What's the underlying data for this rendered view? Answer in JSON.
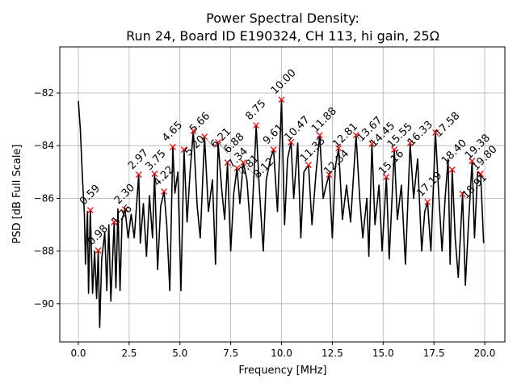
{
  "chart_data": {
    "type": "line",
    "title": "Power Spectral Density:",
    "subtitle": "Run 24, Board ID E190324, CH 113, hi gain, 25Ω",
    "xlabel": "Frequency [MHz]",
    "ylabel": "PSD [dB Full Scale]",
    "xlim": [
      -0.9,
      21.0
    ],
    "ylim": [
      -91.5,
      -80.2
    ],
    "xticks": [
      0.0,
      2.5,
      5.0,
      7.5,
      10.0,
      12.5,
      15.0,
      17.5,
      20.0
    ],
    "xtick_labels": [
      "0.0",
      "2.5",
      "5.0",
      "7.5",
      "10.0",
      "12.5",
      "15.0",
      "17.5",
      "20.0"
    ],
    "yticks": [
      -90,
      -88,
      -86,
      -84,
      -82
    ],
    "ytick_labels": [
      "−90",
      "−88",
      "−86",
      "−84",
      "−82"
    ],
    "grid": true,
    "line_color": "#000000",
    "marker_color": "#ff0000",
    "trace": [
      [
        0,
        -82.3
      ],
      [
        0.1,
        -83.4
      ],
      [
        0.2,
        -85.2
      ],
      [
        0.3,
        -86.6
      ],
      [
        0.35,
        -88.5
      ],
      [
        0.45,
        -86.5
      ],
      [
        0.5,
        -89.6
      ],
      [
        0.59,
        -86.45
      ],
      [
        0.7,
        -89.6
      ],
      [
        0.8,
        -88
      ],
      [
        0.9,
        -89.8
      ],
      [
        0.98,
        -88
      ],
      [
        1.05,
        -90.9
      ],
      [
        1.15,
        -88.3
      ],
      [
        1.3,
        -87.3
      ],
      [
        1.4,
        -89.5
      ],
      [
        1.5,
        -87
      ],
      [
        1.6,
        -89.9
      ],
      [
        1.76,
        -86.9
      ],
      [
        1.85,
        -89.4
      ],
      [
        1.95,
        -86.4
      ],
      [
        2.05,
        -89.5
      ],
      [
        2.15,
        -86.8
      ],
      [
        2.3,
        -86.42
      ],
      [
        2.45,
        -87.5
      ],
      [
        2.6,
        -86.6
      ],
      [
        2.75,
        -87.5
      ],
      [
        2.97,
        -85.1
      ],
      [
        3.05,
        -87.7
      ],
      [
        3.2,
        -86.2
      ],
      [
        3.35,
        -88.2
      ],
      [
        3.5,
        -85.9
      ],
      [
        3.65,
        -87.5
      ],
      [
        3.75,
        -85.07
      ],
      [
        3.9,
        -88.7
      ],
      [
        4.05,
        -86.3
      ],
      [
        4.22,
        -85.74
      ],
      [
        4.35,
        -87
      ],
      [
        4.5,
        -89.5
      ],
      [
        4.65,
        -84.05
      ],
      [
        4.75,
        -85.8
      ],
      [
        4.9,
        -85
      ],
      [
        5.05,
        -89.5
      ],
      [
        5.2,
        -84.15
      ],
      [
        5.35,
        -86.9
      ],
      [
        5.5,
        -85
      ],
      [
        5.66,
        -83.44
      ],
      [
        5.85,
        -86.3
      ],
      [
        6.0,
        -87.5
      ],
      [
        6.21,
        -83.66
      ],
      [
        6.4,
        -86.5
      ],
      [
        6.6,
        -85.3
      ],
      [
        6.75,
        -88.5
      ],
      [
        6.88,
        -83.87
      ],
      [
        7.05,
        -85.6
      ],
      [
        7.2,
        -86.8
      ],
      [
        7.34,
        -84.64
      ],
      [
        7.5,
        -88
      ],
      [
        7.65,
        -85.8
      ],
      [
        7.81,
        -84.85
      ],
      [
        7.95,
        -86.2
      ],
      [
        8.12,
        -84.64
      ],
      [
        8.3,
        -85.3
      ],
      [
        8.5,
        -87.5
      ],
      [
        8.75,
        -83.23
      ],
      [
        8.9,
        -85.5
      ],
      [
        9.1,
        -88
      ],
      [
        9.25,
        -85.3
      ],
      [
        9.45,
        -84.5
      ],
      [
        9.61,
        -84.15
      ],
      [
        9.8,
        -86.5
      ],
      [
        10.0,
        -82.25
      ],
      [
        10.15,
        -87
      ],
      [
        10.3,
        -84.5
      ],
      [
        10.47,
        -83.87
      ],
      [
        10.6,
        -86
      ],
      [
        10.8,
        -83.9
      ],
      [
        10.95,
        -87.5
      ],
      [
        11.1,
        -85
      ],
      [
        11.33,
        -84.73
      ],
      [
        11.5,
        -87
      ],
      [
        11.7,
        -85
      ],
      [
        11.88,
        -83.6
      ],
      [
        12.05,
        -86
      ],
      [
        12.2,
        -85.5
      ],
      [
        12.34,
        -85.1
      ],
      [
        12.5,
        -87.5
      ],
      [
        12.65,
        -84.8
      ],
      [
        12.81,
        -84.1
      ],
      [
        13.0,
        -86.8
      ],
      [
        13.2,
        -85.5
      ],
      [
        13.4,
        -86.9
      ],
      [
        13.67,
        -83.6
      ],
      [
        13.85,
        -86
      ],
      [
        14.0,
        -87.5
      ],
      [
        14.2,
        -86
      ],
      [
        14.3,
        -88.2
      ],
      [
        14.45,
        -83.93
      ],
      [
        14.6,
        -87
      ],
      [
        14.8,
        -85.5
      ],
      [
        14.95,
        -88
      ],
      [
        15.16,
        -85.19
      ],
      [
        15.3,
        -88.3
      ],
      [
        15.55,
        -84.15
      ],
      [
        15.7,
        -86.8
      ],
      [
        15.9,
        -85.5
      ],
      [
        16.1,
        -88.5
      ],
      [
        16.33,
        -83.9
      ],
      [
        16.5,
        -86
      ],
      [
        16.7,
        -84.5
      ],
      [
        16.9,
        -88
      ],
      [
        17.05,
        -86.5
      ],
      [
        17.19,
        -86.14
      ],
      [
        17.35,
        -88
      ],
      [
        17.58,
        -83.5
      ],
      [
        17.75,
        -86
      ],
      [
        17.9,
        -88
      ],
      [
        18.05,
        -86
      ],
      [
        18.2,
        -84.5
      ],
      [
        18.3,
        -88.5
      ],
      [
        18.4,
        -84.91
      ],
      [
        18.55,
        -87.5
      ],
      [
        18.7,
        -89
      ],
      [
        18.91,
        -85.83
      ],
      [
        19.05,
        -89.3
      ],
      [
        19.2,
        -87
      ],
      [
        19.38,
        -84.58
      ],
      [
        19.5,
        -87.5
      ],
      [
        19.65,
        -85
      ],
      [
        19.8,
        -85.07
      ],
      [
        19.95,
        -87.7
      ]
    ],
    "peaks": [
      {
        "x": 0.59,
        "y": -86.45,
        "label": "0.59"
      },
      {
        "x": 0.98,
        "y": -87.98,
        "label": "0.98"
      },
      {
        "x": 1.76,
        "y": -86.9,
        "label": "1.76"
      },
      {
        "x": 2.3,
        "y": -86.42,
        "label": "2.30"
      },
      {
        "x": 2.97,
        "y": -85.1,
        "label": "2.97"
      },
      {
        "x": 3.75,
        "y": -85.07,
        "label": "3.75"
      },
      {
        "x": 4.22,
        "y": -85.74,
        "label": "4.22"
      },
      {
        "x": 4.65,
        "y": -84.05,
        "label": "4.65"
      },
      {
        "x": 5.2,
        "y": -84.15,
        "label": "5.20"
      },
      {
        "x": 5.66,
        "y": -83.44,
        "label": "5.66"
      },
      {
        "x": 6.21,
        "y": -83.66,
        "label": "6.21"
      },
      {
        "x": 6.88,
        "y": -83.87,
        "label": "6.88"
      },
      {
        "x": 7.34,
        "y": -84.64,
        "label": "7.34"
      },
      {
        "x": 7.81,
        "y": -84.85,
        "label": "7.81"
      },
      {
        "x": 8.12,
        "y": -84.64,
        "label": "8.12"
      },
      {
        "x": 8.75,
        "y": -83.23,
        "label": "8.75"
      },
      {
        "x": 9.61,
        "y": -84.15,
        "label": "9.61"
      },
      {
        "x": 10.0,
        "y": -82.25,
        "label": "10.00"
      },
      {
        "x": 10.47,
        "y": -83.87,
        "label": "10.47"
      },
      {
        "x": 11.33,
        "y": -84.73,
        "label": "11.33"
      },
      {
        "x": 11.88,
        "y": -83.6,
        "label": "11.88"
      },
      {
        "x": 12.34,
        "y": -85.1,
        "label": "12.34"
      },
      {
        "x": 12.81,
        "y": -84.1,
        "label": "12.81"
      },
      {
        "x": 13.67,
        "y": -83.6,
        "label": "13.67"
      },
      {
        "x": 14.45,
        "y": -83.93,
        "label": "14.45"
      },
      {
        "x": 15.16,
        "y": -85.19,
        "label": "15.16"
      },
      {
        "x": 15.55,
        "y": -84.15,
        "label": "15.55"
      },
      {
        "x": 16.33,
        "y": -83.9,
        "label": "16.33"
      },
      {
        "x": 17.19,
        "y": -86.14,
        "label": "17.19"
      },
      {
        "x": 17.58,
        "y": -83.5,
        "label": "17.58"
      },
      {
        "x": 18.4,
        "y": -84.91,
        "label": "18.40"
      },
      {
        "x": 18.91,
        "y": -85.83,
        "label": "18.91"
      },
      {
        "x": 19.38,
        "y": -84.58,
        "label": "19.38"
      },
      {
        "x": 19.8,
        "y": -85.07,
        "label": "19.80"
      }
    ]
  }
}
